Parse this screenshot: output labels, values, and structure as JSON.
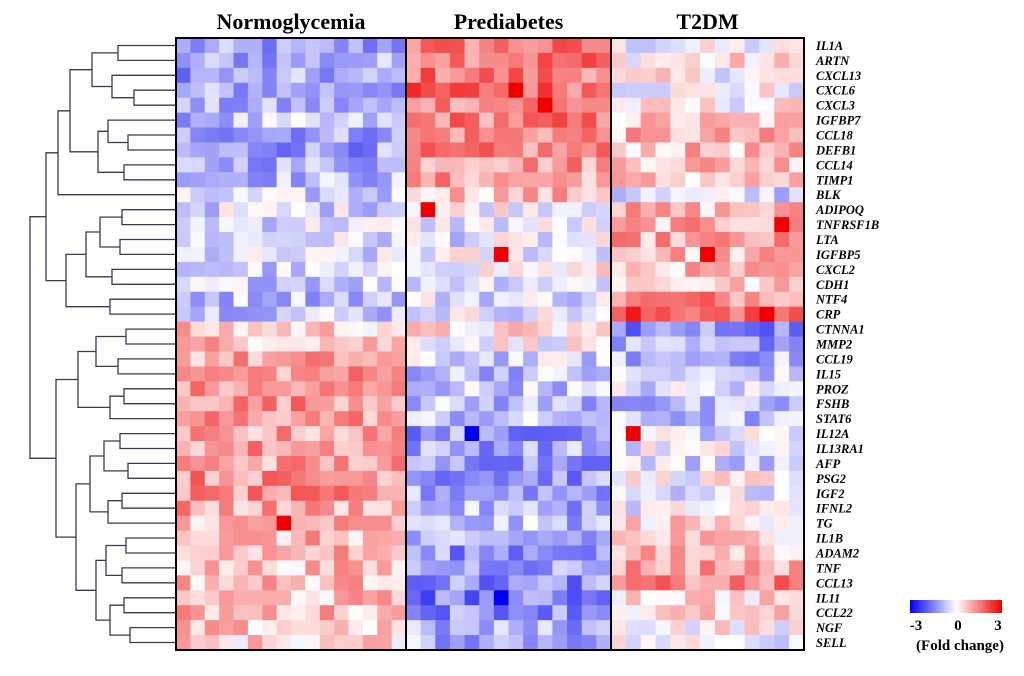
{
  "chart_data": {
    "type": "heatmap",
    "title": "",
    "groups": [
      {
        "name": "Normoglycemia",
        "n_samples": 16
      },
      {
        "name": "Prediabetes",
        "n_samples": 14
      },
      {
        "name": "T2DM",
        "n_samples": 13
      }
    ],
    "genes": [
      "IL1A",
      "ARTN",
      "CXCL13",
      "CXCL6",
      "CXCL3",
      "IGFBP7",
      "CCL18",
      "DEFB1",
      "CCL14",
      "TIMP1",
      "BLK",
      "ADIPOQ",
      "TNFRSF1B",
      "LTA",
      "IGFBP5",
      "CXCL2",
      "CDH1",
      "NTF4",
      "CRP",
      "CTNNA1",
      "MMP2",
      "CCL19",
      "IL15",
      "PROZ",
      "FSHB",
      "STAT6",
      "IL12A",
      "IL13RA1",
      "AFP",
      "PSG2",
      "IGF2",
      "IFNL2",
      "TG",
      "IL1B",
      "ADAM2",
      "TNF",
      "CCL13",
      "IL11",
      "CCL22",
      "NGF",
      "SELL"
    ],
    "group_mean_fold_change": [
      [
        -1.2,
        1.5,
        -0.2
      ],
      [
        -1.0,
        1.7,
        0.3
      ],
      [
        -1.1,
        1.6,
        0.1
      ],
      [
        -1.0,
        1.8,
        0.0
      ],
      [
        -1.1,
        1.5,
        0.1
      ],
      [
        -0.8,
        1.5,
        0.6
      ],
      [
        -1.0,
        1.4,
        0.8
      ],
      [
        -1.1,
        1.3,
        0.7
      ],
      [
        -0.9,
        1.2,
        0.9
      ],
      [
        -0.8,
        1.1,
        0.6
      ],
      [
        -0.6,
        0.8,
        -0.5
      ],
      [
        -0.4,
        0.1,
        0.8
      ],
      [
        -0.3,
        -0.2,
        0.9
      ],
      [
        -0.4,
        -0.3,
        1.0
      ],
      [
        -0.5,
        -0.1,
        0.8
      ],
      [
        -0.6,
        0.1,
        0.7
      ],
      [
        -0.5,
        -0.2,
        0.5
      ],
      [
        -0.7,
        -0.3,
        1.4
      ],
      [
        -0.6,
        -0.2,
        2.0
      ],
      [
        0.6,
        0.3,
        -1.3
      ],
      [
        0.8,
        0.1,
        -1.1
      ],
      [
        1.0,
        -0.5,
        -0.9
      ],
      [
        1.2,
        -0.7,
        -0.6
      ],
      [
        1.1,
        -0.6,
        -0.4
      ],
      [
        1.3,
        -0.8,
        -1.0
      ],
      [
        1.2,
        -0.7,
        -0.8
      ],
      [
        1.0,
        -1.2,
        -0.3
      ],
      [
        1.2,
        -1.0,
        -0.2
      ],
      [
        1.1,
        -1.1,
        -0.4
      ],
      [
        1.3,
        -1.2,
        0.1
      ],
      [
        1.2,
        -1.0,
        -0.3
      ],
      [
        1.0,
        -0.9,
        -0.1
      ],
      [
        0.9,
        -0.8,
        0.5
      ],
      [
        0.8,
        -1.1,
        0.6
      ],
      [
        0.9,
        -1.2,
        0.7
      ],
      [
        0.7,
        -1.0,
        1.1
      ],
      [
        0.8,
        -1.3,
        1.3
      ],
      [
        0.7,
        -1.5,
        0.5
      ],
      [
        0.8,
        -1.2,
        0.4
      ],
      [
        0.6,
        -1.0,
        0.2
      ],
      [
        0.5,
        -0.9,
        -0.1
      ]
    ],
    "strong_cells": [
      {
        "gene": "CXCL6",
        "group": "Prediabetes",
        "fold_change": 3
      },
      {
        "gene": "CXCL3",
        "group": "Prediabetes",
        "fold_change": 3
      },
      {
        "gene": "ADIPOQ",
        "group": "Prediabetes",
        "fold_change": 3
      },
      {
        "gene": "IGFBP5",
        "group": "Prediabetes",
        "fold_change": 3
      },
      {
        "gene": "TNFRSF1B",
        "group": "T2DM",
        "fold_change": 3
      },
      {
        "gene": "IGFBP5",
        "group": "T2DM",
        "fold_change": 3
      },
      {
        "gene": "CRP",
        "group": "T2DM",
        "fold_change": 3
      },
      {
        "gene": "TG",
        "group": "Normoglycemia",
        "fold_change": 3
      },
      {
        "gene": "IL12A",
        "group": "T2DM",
        "fold_change": 3
      },
      {
        "gene": "IL11",
        "group": "Prediabetes",
        "fold_change": -3
      },
      {
        "gene": "IL12A",
        "group": "Prediabetes",
        "fold_change": -3
      }
    ],
    "colorscale": {
      "min": -3,
      "mid": 0,
      "max": 3,
      "low_color": "#0000ee",
      "mid_color": "#ffffff",
      "high_color": "#ee0000",
      "tick_labels": [
        "-3",
        "0",
        "3"
      ],
      "title": "(Fold change)"
    },
    "dendrogram": "rows clustered (hierarchical)"
  }
}
